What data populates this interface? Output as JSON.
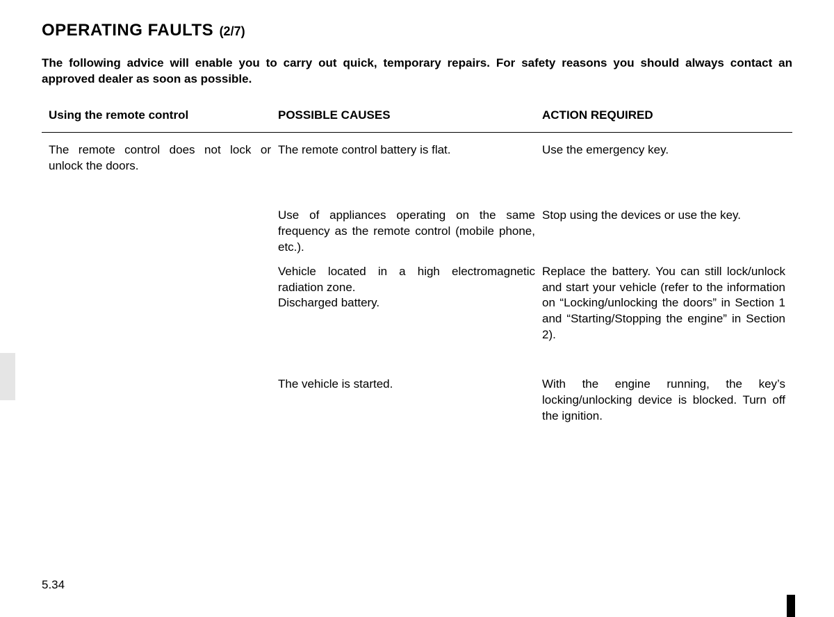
{
  "title": {
    "main": "OPERATING FAULTS",
    "suffix": "(2/7)"
  },
  "intro": "The following advice will enable you to carry out quick, temporary repairs. For safety reasons you should always contact an approved dealer as soon as possible.",
  "table": {
    "headers": {
      "col1": "Using the remote control",
      "col2": "POSSIBLE CAUSES",
      "col3": "ACTION REQUIRED"
    },
    "rows": [
      {
        "fault": "The remote control does not lock or unlock the doors.",
        "cause": "The remote control battery is flat.",
        "action": "Use the emergency key."
      },
      {
        "fault": "",
        "cause": "Use of appliances operating on the same frequency as the remote control (mobile phone, etc.).",
        "action": "Stop using the devices or use the key."
      },
      {
        "fault": "",
        "cause": "Vehicle located in a high electromagnetic radiation zone.\nDischarged battery.",
        "action": "Replace the battery. You can still lock/unlock and start your vehicle (refer to the information on “Locking/unlocking the doors” in Section 1 and “Starting/Stopping the engine” in Section 2)."
      },
      {
        "fault": "",
        "cause": "The vehicle is started.",
        "action": "With the engine running, the key’s locking/unlocking device is blocked. Turn off the ignition."
      }
    ]
  },
  "pageNumber": "5.34",
  "colors": {
    "text": "#000000",
    "background": "#ffffff",
    "sideTab": "#e5e5e5",
    "rule": "#000000"
  },
  "typography": {
    "titleFontSize": 24,
    "suffixFontSize": 18,
    "bodyFontSize": 17,
    "fontFamily": "Arial"
  }
}
